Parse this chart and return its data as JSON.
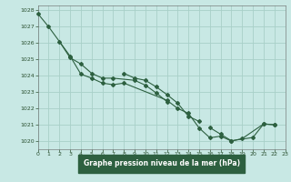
{
  "title": "Graphe pression niveau de la mer (hPa)",
  "bg_color": "#c8e8e4",
  "grid_color": "#a8d0c8",
  "line_color": "#2d6040",
  "label_bg": "#2d6040",
  "label_fg": "#ffffff",
  "xlim": [
    0,
    23
  ],
  "ylim": [
    1019.5,
    1028.3
  ],
  "yticks": [
    1020,
    1021,
    1022,
    1023,
    1024,
    1025,
    1026,
    1027,
    1028
  ],
  "xticks": [
    0,
    1,
    2,
    3,
    4,
    5,
    6,
    7,
    8,
    9,
    10,
    11,
    12,
    13,
    14,
    15,
    16,
    17,
    18,
    19,
    20,
    21,
    22,
    23
  ],
  "line1_x": [
    0,
    1,
    3,
    4,
    5,
    6,
    7,
    8,
    12,
    13,
    14,
    15,
    16,
    17,
    18,
    19,
    21,
    22
  ],
  "line1_y": [
    1027.8,
    1027.0,
    1025.2,
    1024.1,
    1023.85,
    1023.55,
    1023.45,
    1023.55,
    1022.5,
    1022.0,
    1021.7,
    1020.8,
    1020.2,
    1020.3,
    1020.0,
    1020.15,
    1021.05,
    1021.0
  ],
  "line2_x": [
    2,
    3,
    4,
    5,
    6,
    7,
    9,
    10,
    11,
    12
  ],
  "line2_y": [
    1026.1,
    1025.1,
    1024.72,
    1024.15,
    1023.85,
    1023.85,
    1023.72,
    1023.42,
    1022.95,
    1022.42
  ],
  "line3_x": [
    8,
    9,
    10,
    11,
    12,
    13,
    14,
    15
  ],
  "line3_y": [
    1024.15,
    1023.85,
    1023.72,
    1023.32,
    1022.85,
    1022.32,
    1021.52,
    1021.2
  ],
  "line4_x": [
    16,
    17,
    18,
    20,
    21,
    22
  ],
  "line4_y": [
    1020.82,
    1020.42,
    1020.02,
    1020.22,
    1021.05,
    1021.0
  ]
}
